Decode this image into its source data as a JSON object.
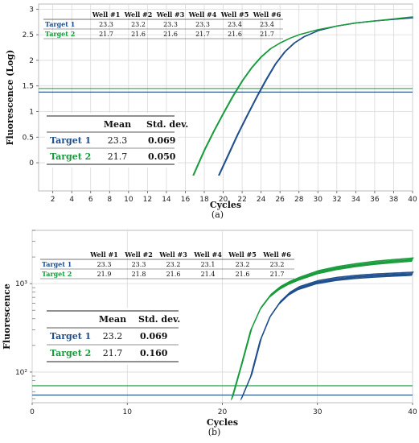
{
  "colors": {
    "target1": "#1f4e8c",
    "target2": "#179b3b",
    "grid": "#d9d9d9",
    "axis": "#555555",
    "frame": "#bbbbbb"
  },
  "chart_data": [
    {
      "type": "line",
      "panel_label": "(a)",
      "xlabel": "Cycles",
      "ylabel": "Fluorescence (Log)",
      "xlim": [
        0.5,
        40
      ],
      "ylim": [
        -0.55,
        3.1
      ],
      "x_ticks": [
        2,
        4,
        6,
        8,
        10,
        12,
        14,
        16,
        18,
        20,
        22,
        24,
        26,
        28,
        30,
        32,
        34,
        36,
        38,
        40
      ],
      "y_ticks": [
        0,
        0.5,
        1,
        1.5,
        2,
        2.5,
        3
      ],
      "y_tick_labels": [
        "0",
        "0.5",
        "1",
        "1.5",
        "2",
        "2.5",
        "3"
      ],
      "grid": "vertical and horizontal",
      "thresholds": [
        {
          "series": "Target 1",
          "y": 1.38
        },
        {
          "series": "Target 2",
          "y": 1.45
        }
      ],
      "series": [
        {
          "name": "Target 1",
          "color": "#1f4e8c",
          "x": [
            19.5,
            20.5,
            21.5,
            22.5,
            23.5,
            24.5,
            25.5,
            26.5,
            27.5,
            28.5,
            30,
            32,
            34,
            36,
            38,
            40
          ],
          "y": [
            -0.25,
            0.15,
            0.55,
            0.92,
            1.28,
            1.62,
            1.93,
            2.17,
            2.34,
            2.46,
            2.58,
            2.67,
            2.73,
            2.77,
            2.8,
            2.83
          ]
        },
        {
          "name": "Target 2",
          "color": "#179b3b",
          "x": [
            16.8,
            18,
            19,
            20,
            21,
            22,
            23,
            24,
            25,
            26,
            27,
            28,
            30,
            32,
            34,
            36,
            38,
            40
          ],
          "y": [
            -0.25,
            0.25,
            0.62,
            0.97,
            1.3,
            1.6,
            1.86,
            2.07,
            2.23,
            2.34,
            2.43,
            2.5,
            2.6,
            2.67,
            2.73,
            2.77,
            2.81,
            2.85
          ]
        }
      ],
      "wells_table": {
        "columns": [
          "",
          "Well #1",
          "Well #2",
          "Well #3",
          "Well #4",
          "Well #5",
          "Well #6"
        ],
        "rows": [
          [
            "Target 1",
            "23.3",
            "23.2",
            "23.3",
            "23.3",
            "23.4",
            "23.4"
          ],
          [
            "Target 2",
            "21.7",
            "21.6",
            "21.6",
            "21.7",
            "21.6",
            "21.7"
          ]
        ]
      },
      "stats_table": {
        "columns": [
          "",
          "Mean",
          "Std. dev."
        ],
        "rows": [
          [
            "Target 1",
            "23.3",
            "0.069"
          ],
          [
            "Target 2",
            "21.7",
            "0.050"
          ]
        ]
      }
    },
    {
      "type": "line",
      "panel_label": "(b)",
      "xlabel": "Cycles",
      "ylabel": "Fluorescence",
      "xlim": [
        0,
        40
      ],
      "log_scale_y": true,
      "ylim": [
        45,
        4000
      ],
      "x_ticks": [
        0,
        10,
        20,
        30,
        40
      ],
      "y_ticks": [
        100,
        1000
      ],
      "y_tick_labels": [
        "10²",
        "10³"
      ],
      "grid": "vertical and horizontal",
      "thresholds": [
        {
          "series": "Target 1",
          "y": 55
        },
        {
          "series": "Target 2",
          "y": 70
        }
      ],
      "series": [
        {
          "name": "Target 1",
          "color": "#1f4e8c",
          "x": [
            22,
            23,
            24,
            25,
            26,
            27,
            28,
            30,
            32,
            34,
            36,
            38,
            40
          ],
          "y": [
            50,
            90,
            230,
            420,
            600,
            760,
            880,
            1030,
            1120,
            1180,
            1220,
            1250,
            1280
          ]
        },
        {
          "name": "Target 2",
          "color": "#179b3b",
          "x": [
            21,
            22,
            23,
            24,
            25,
            26,
            27,
            28,
            30,
            32,
            34,
            36,
            38,
            40
          ],
          "y": [
            50,
            120,
            300,
            520,
            720,
            880,
            1010,
            1120,
            1330,
            1480,
            1600,
            1700,
            1780,
            1850
          ]
        }
      ],
      "wells_table": {
        "columns": [
          "",
          "Well #1",
          "Well #2",
          "Well #3",
          "Well #4",
          "Well #5",
          "Well #6"
        ],
        "rows": [
          [
            "Target 1",
            "23.3",
            "23.3",
            "23.2",
            "23.1",
            "23.2",
            "23.2"
          ],
          [
            "Target 2",
            "21.9",
            "21.8",
            "21.6",
            "21.4",
            "21.6",
            "21.7"
          ]
        ]
      },
      "stats_table": {
        "columns": [
          "",
          "Mean",
          "Std. dev."
        ],
        "rows": [
          [
            "Target 1",
            "23.2",
            "0.069"
          ],
          [
            "Target 2",
            "21.7",
            "0.160"
          ]
        ]
      }
    }
  ]
}
